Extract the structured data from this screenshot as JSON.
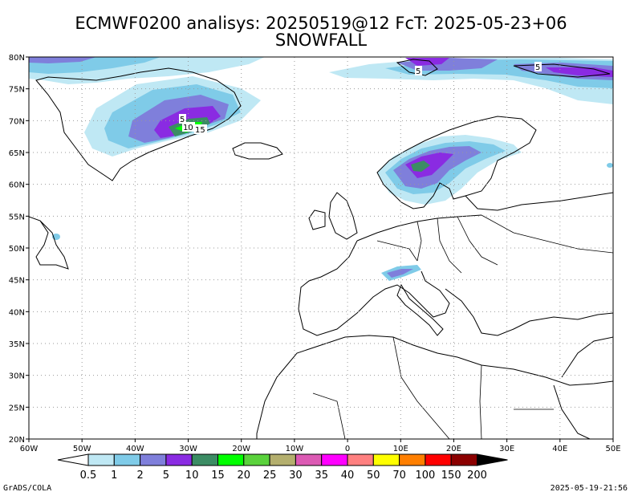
{
  "header": {
    "title_line1": "ECMWF0200 analisys: 20250519@12 FcT: 2025-05-23+06",
    "title_line2": "SNOWFALL"
  },
  "axes": {
    "lat_labels": [
      "80N",
      "75N",
      "70N",
      "65N",
      "60N",
      "55N",
      "50N",
      "45N",
      "40N",
      "35N",
      "30N",
      "25N",
      "20N"
    ],
    "lon_labels": [
      "60W",
      "50W",
      "40W",
      "30W",
      "20W",
      "10W",
      "0",
      "10E",
      "20E",
      "30E",
      "40E",
      "50E"
    ]
  },
  "contour_labels": [
    "5",
    "10",
    "15",
    "5",
    "5"
  ],
  "colorbar": {
    "labels": [
      "0.5",
      "1",
      "2",
      "5",
      "10",
      "15",
      "20",
      "25",
      "30",
      "35",
      "40",
      "50",
      "70",
      "100",
      "150",
      "200"
    ],
    "colors": [
      "#ffffff",
      "#bfe8f4",
      "#7fcbe8",
      "#7f7fdb",
      "#8a2be2",
      "#3c8c64",
      "#00ff00",
      "#5ad23c",
      "#b4af6e",
      "#dc5ab4",
      "#ff00ff",
      "#ff8080",
      "#ffff00",
      "#ff7f00",
      "#ff0000",
      "#8b0000",
      "#000000"
    ]
  },
  "footer": {
    "credit": "GrADS/COLA",
    "timestamp": "2025-05-19-21:56"
  }
}
